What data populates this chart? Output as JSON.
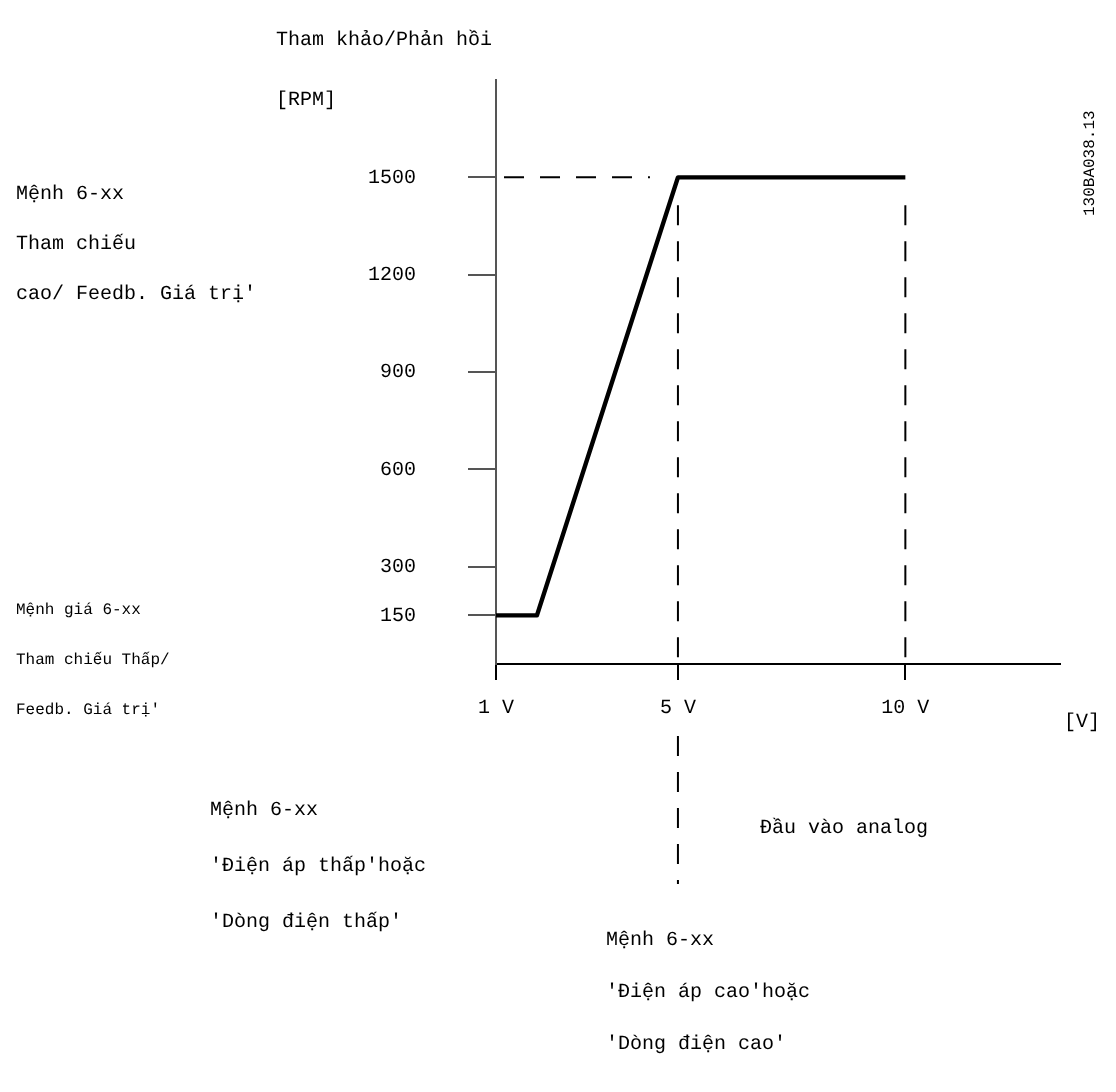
{
  "chart_data": {
    "type": "line",
    "ylabel": "Tham khảo/Phản hồi",
    "xlabel": "[V]",
    "x": [
      1,
      1.9,
      5,
      10
    ],
    "series": [
      {
        "color": "#000000",
        "values": [
          150,
          150,
          1500,
          1500
        ]
      }
    ],
    "xlim": [
      1,
      13.4
    ],
    "xticks": [
      {
        "value": 1,
        "label": "1 V"
      },
      {
        "value": 5,
        "label": "5 V"
      },
      {
        "value": 10,
        "label": "10 V"
      }
    ],
    "ylim": [
      0,
      1800
    ],
    "yticks": [
      150,
      300,
      600,
      900,
      1200,
      1500
    ],
    "ref_lines": [
      {
        "axis": "y",
        "value": 1500,
        "line_style": "dashed",
        "color": "#000000"
      },
      {
        "axis": "x",
        "value": 5,
        "line_style": "dashed",
        "color": "#000000"
      },
      {
        "axis": "x",
        "value": 10,
        "line_style": "dashed",
        "color": "#000000"
      }
    ],
    "annotations": [
      "[RPM]",
      "Mệnh 6-xx\nTham chiếu\ncao/ Feedb. Giá trị'",
      "Mệnh giá 6-xx\nTham chiếu Thấp/\nFeedb. Giá trị'",
      "Mệnh 6-xx\n'Điện áp thấp'hoặc\n'Dòng điện thấp'",
      "Đầu vào analog",
      "Mệnh 6-xx\n'Điện áp cao'hoặc\n'Dòng điện cao'",
      "130BA038.13"
    ],
    "grid": false,
    "legend": false,
    "marker": "none",
    "line_style": "solid"
  }
}
